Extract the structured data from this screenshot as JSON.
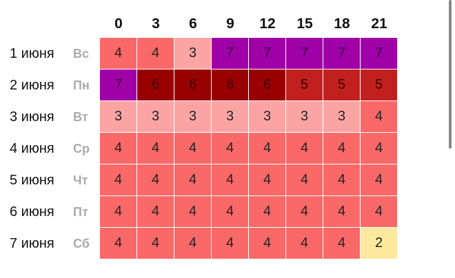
{
  "header": {
    "hours": [
      0,
      3,
      6,
      9,
      12,
      15,
      18,
      21
    ]
  },
  "table": {
    "rows": [
      {
        "date": "1 июня",
        "weekday": "Вс",
        "values": [
          4,
          4,
          3,
          7,
          7,
          7,
          7,
          7
        ]
      },
      {
        "date": "2 июня",
        "weekday": "Пн",
        "values": [
          7,
          6,
          6,
          6,
          6,
          5,
          5,
          5
        ]
      },
      {
        "date": "3 июня",
        "weekday": "Вт",
        "values": [
          3,
          3,
          3,
          3,
          3,
          3,
          3,
          4
        ]
      },
      {
        "date": "4 июня",
        "weekday": "Ср",
        "values": [
          4,
          4,
          4,
          4,
          4,
          4,
          4,
          4
        ]
      },
      {
        "date": "5 июня",
        "weekday": "Чт",
        "values": [
          4,
          4,
          4,
          4,
          4,
          4,
          4,
          4
        ]
      },
      {
        "date": "6 июня",
        "weekday": "Пт",
        "values": [
          4,
          4,
          4,
          4,
          4,
          4,
          4,
          4
        ]
      },
      {
        "date": "7 июня",
        "weekday": "Сб",
        "values": [
          4,
          4,
          4,
          4,
          4,
          4,
          4,
          2
        ]
      }
    ]
  }
}
